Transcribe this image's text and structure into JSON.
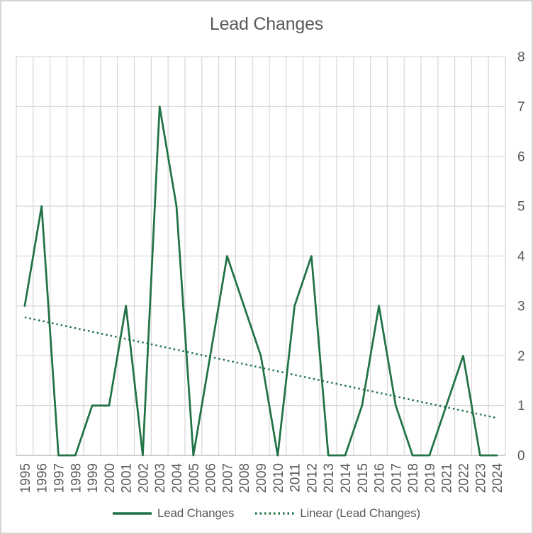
{
  "title": "Lead Changes",
  "legend": {
    "series_label": "Lead Changes",
    "trend_label": "Linear (Lead Changes)"
  },
  "colors": {
    "series_green": "#217346",
    "gridline": "#d9d9d9",
    "axis_line": "#bfbfbf",
    "label_text": "#595959",
    "frame_border": "#d4d4d4",
    "background": "#ffffff"
  },
  "chart_data": {
    "type": "line",
    "title": "Lead Changes",
    "categories": [
      "1995",
      "1996",
      "1997",
      "1998",
      "1999",
      "2000",
      "2001",
      "2002",
      "2003",
      "2004",
      "2005",
      "2006",
      "2007",
      "2008",
      "2009",
      "2010",
      "2011",
      "2012",
      "2013",
      "2014",
      "2015",
      "2016",
      "2017",
      "2018",
      "2019",
      "2021",
      "2022",
      "2023",
      "2024"
    ],
    "series": [
      {
        "name": "Lead Changes",
        "style": "solid",
        "values": [
          3,
          5,
          0,
          0,
          1,
          1,
          3,
          0,
          7,
          5,
          0,
          2,
          4,
          3,
          2,
          0,
          3,
          4,
          0,
          0,
          1,
          3,
          1,
          0,
          0,
          1,
          2,
          0,
          0
        ]
      },
      {
        "name": "Linear (Lead Changes)",
        "style": "dotted",
        "trend_start_value": 2.77,
        "trend_end_value": 0.75
      }
    ],
    "ylim": [
      0,
      8
    ],
    "y_ticks": [
      0,
      1,
      2,
      3,
      4,
      5,
      6,
      7,
      8
    ],
    "y_axis_side": "right",
    "x_label_rotation": -90,
    "grid": true,
    "legend_position": "bottom",
    "note_missing_category": "2020 absent from axis"
  }
}
